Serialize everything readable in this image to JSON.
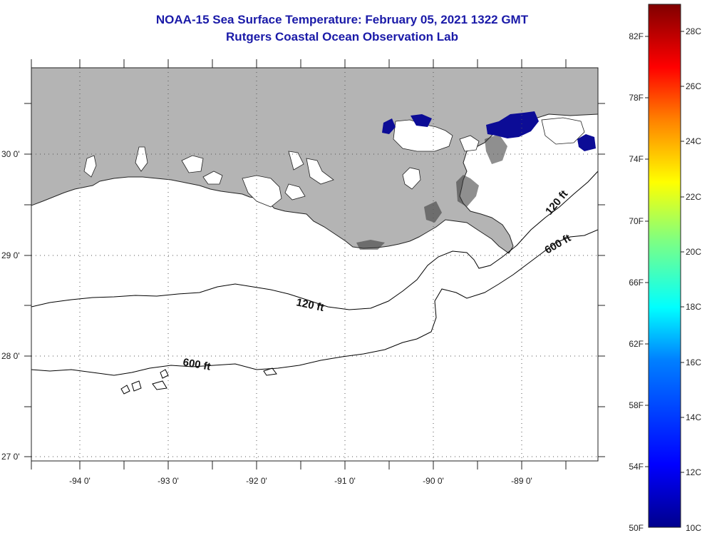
{
  "header": {
    "title": "NOAA-15 Sea Surface Temperature:  February 05, 2021 1322 GMT",
    "subtitle": "Rutgers Coastal Ocean Observation Lab"
  },
  "map": {
    "lon_labels": [
      "-94 0'",
      "-93 0'",
      "-92 0'",
      "-91 0'",
      "-90 0'",
      "-89 0'"
    ],
    "lat_labels": [
      "30 0'",
      "29 0'",
      "28 0'",
      "27 0'"
    ],
    "lon_range": [
      -94.55,
      -88.0
    ],
    "lat_range": [
      26.95,
      29.85
    ],
    "land_color": "#b4b4b4",
    "water_color": "#ffffff",
    "sst_pixel_color": "#0c0c96",
    "contours": [
      {
        "label": "120 ft"
      },
      {
        "label": "120 ft"
      },
      {
        "label": "600 ft"
      },
      {
        "label": "600 ft"
      }
    ]
  },
  "colorbar": {
    "fahrenheit_labels": [
      "82F",
      "78F",
      "74F",
      "70F",
      "66F",
      "62F",
      "58F",
      "54F",
      "50F"
    ],
    "celsius_labels": [
      "28C",
      "26C",
      "24C",
      "22C",
      "20C",
      "18C",
      "16C",
      "14C",
      "12C",
      "10C"
    ],
    "range_c": [
      10,
      29
    ],
    "colors": [
      "#00008c",
      "#0000ff",
      "#0080ff",
      "#00ffff",
      "#80ff80",
      "#ffff00",
      "#ff8000",
      "#ff0000",
      "#800000"
    ]
  }
}
